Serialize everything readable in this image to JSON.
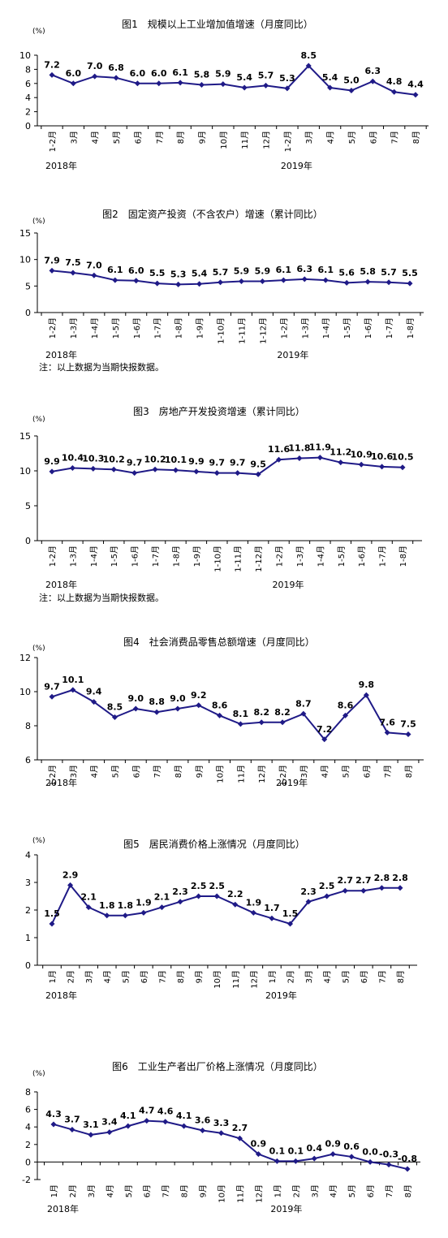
{
  "charts": [
    {
      "title": "图1　规模以上工业增加值增速（月度同比）",
      "unit": "(%)",
      "note": "",
      "year_labels": [
        {
          "label": "2018年",
          "index": 0
        },
        {
          "label": "2019年",
          "index": 11
        }
      ],
      "chart_data": {
        "type": "line",
        "categories": [
          "1-2月",
          "3月",
          "4月",
          "5月",
          "6月",
          "7月",
          "8月",
          "9月",
          "10月",
          "11月",
          "12月",
          "1-2月",
          "3月",
          "4月",
          "5月",
          "6月",
          "7月",
          "8月"
        ],
        "values": [
          7.2,
          6.0,
          7.0,
          6.8,
          6.0,
          6.0,
          6.1,
          5.8,
          5.9,
          5.4,
          5.7,
          5.3,
          8.5,
          5.4,
          5.0,
          6.3,
          4.8,
          4.4
        ],
        "labels": [
          "7.2",
          "6.0",
          "7.0",
          "6.8",
          "6.0",
          "6.0",
          "6.1",
          "5.8",
          "5.9",
          "5.4",
          "5.7",
          "5.3",
          "8.5",
          "5.4",
          "5.0",
          "6.3",
          "4.8",
          "4.4"
        ],
        "ylim": [
          0,
          10
        ],
        "yticks": [
          "0",
          "2",
          "4",
          "6",
          "8",
          "10"
        ]
      }
    },
    {
      "title": "图2　固定资产投资（不含农户）增速（累计同比）",
      "unit": "(%)",
      "note": "注：以上数据为当期快报数据。",
      "year_labels": [
        {
          "label": "2018年",
          "index": 0
        },
        {
          "label": "2019年",
          "index": 11
        }
      ],
      "chart_data": {
        "type": "line",
        "categories": [
          "1-2月",
          "1-3月",
          "1-4月",
          "1-5月",
          "1-6月",
          "1-7月",
          "1-8月",
          "1-9月",
          "1-10月",
          "1-11月",
          "1-12月",
          "1-2月",
          "1-3月",
          "1-4月",
          "1-5月",
          "1-6月",
          "1-7月",
          "1-8月"
        ],
        "values": [
          7.9,
          7.5,
          7.0,
          6.1,
          6.0,
          5.5,
          5.3,
          5.4,
          5.7,
          5.9,
          5.9,
          6.1,
          6.3,
          6.1,
          5.6,
          5.8,
          5.7,
          5.5
        ],
        "labels": [
          "7.9",
          "7.5",
          "7.0",
          "6.1",
          "6.0",
          "5.5",
          "5.3",
          "5.4",
          "5.7",
          "5.9",
          "5.9",
          "6.1",
          "6.3",
          "6.1",
          "5.6",
          "5.8",
          "5.7",
          "5.5"
        ],
        "ylim": [
          0,
          15
        ],
        "yticks": [
          "0",
          "5",
          "10",
          "15"
        ]
      }
    },
    {
      "title": "图3　房地产开发投资增速（累计同比）",
      "unit": "(%)",
      "note": "注：以上数据为当期快报数据。",
      "year_labels": [
        {
          "label": "2018年",
          "index": 0
        },
        {
          "label": "2019年",
          "index": 11
        }
      ],
      "chart_data": {
        "type": "line",
        "categories": [
          "1-2月",
          "1-3月",
          "1-4月",
          "1-5月",
          "1-6月",
          "1-7月",
          "1-8月",
          "1-9月",
          "1-10月",
          "1-11月",
          "1-12月",
          "1-2月",
          "1-3月",
          "1-4月",
          "1-5月",
          "1-6月",
          "1-7月",
          "1-8月"
        ],
        "values": [
          9.9,
          10.4,
          10.3,
          10.2,
          9.7,
          10.2,
          10.1,
          9.9,
          9.7,
          9.7,
          9.5,
          11.6,
          11.8,
          11.9,
          11.2,
          10.9,
          10.6,
          10.5
        ],
        "labels": [
          "9.9",
          "10.4",
          "10.3",
          "10.2",
          "9.7",
          "10.2",
          "10.1",
          "9.9",
          "9.7",
          "9.7",
          "9.5",
          "11.6",
          "11.8",
          "11.9",
          "11.2",
          "10.9",
          "10.6",
          "10.5"
        ],
        "ylim": [
          0,
          15
        ],
        "yticks": [
          "0",
          "5",
          "10",
          "15"
        ]
      }
    },
    {
      "title": "图4　社会消费品零售总额增速（月度同比）",
      "unit": "(%)",
      "note": "",
      "year_labels": [
        {
          "label": "2018年",
          "index": 0
        },
        {
          "label": "2019年",
          "index": 11
        }
      ],
      "chart_data": {
        "type": "line",
        "categories": [
          "1-2月",
          "3月",
          "4月",
          "5月",
          "6月",
          "7月",
          "8月",
          "9月",
          "10月",
          "11月",
          "12月",
          "1-2月",
          "3月",
          "4月",
          "5月",
          "6月",
          "7月",
          "8月"
        ],
        "values": [
          9.7,
          10.1,
          9.4,
          8.5,
          9.0,
          8.8,
          9.0,
          9.2,
          8.6,
          8.1,
          8.2,
          8.2,
          8.7,
          7.2,
          8.6,
          9.8,
          7.6,
          7.5
        ],
        "labels": [
          "9.7",
          "10.1",
          "9.4",
          "8.5",
          "9.0",
          "8.8",
          "9.0",
          "9.2",
          "8.6",
          "8.1",
          "8.2",
          "8.2",
          "8.7",
          "7.2",
          "8.6",
          "9.8",
          "7.6",
          "7.5"
        ],
        "ylim": [
          6,
          12
        ],
        "yticks": [
          "6",
          "8",
          "10",
          "12"
        ]
      }
    },
    {
      "title": "图5　居民消费价格上涨情况（月度同比）",
      "unit": "(%)",
      "note": "",
      "year_labels": [
        {
          "label": "2018年",
          "index": 0
        },
        {
          "label": "2019年",
          "index": 12
        }
      ],
      "chart_data": {
        "type": "line",
        "categories": [
          "1月",
          "2月",
          "3月",
          "4月",
          "5月",
          "6月",
          "7月",
          "8月",
          "9月",
          "10月",
          "11月",
          "12月",
          "1月",
          "2月",
          "3月",
          "4月",
          "5月",
          "6月",
          "7月",
          "8月"
        ],
        "values": [
          1.5,
          2.9,
          2.1,
          1.8,
          1.8,
          1.9,
          2.1,
          2.3,
          2.5,
          2.5,
          2.2,
          1.9,
          1.7,
          1.5,
          2.3,
          2.5,
          2.7,
          2.7,
          2.8,
          2.8
        ],
        "labels": [
          "1.5",
          "2.9",
          "2.1",
          "1.8",
          "1.8",
          "1.9",
          "2.1",
          "2.3",
          "2.5",
          "2.5",
          "2.2",
          "1.9",
          "1.7",
          "1.5",
          "2.3",
          "2.5",
          "2.7",
          "2.7",
          "2.8",
          "2.8"
        ],
        "ylim": [
          0,
          4
        ],
        "yticks": [
          "0",
          "1",
          "2",
          "3",
          "4"
        ]
      }
    },
    {
      "title": "图6　工业生产者出厂价格上涨情况（月度同比）",
      "unit": "(%)",
      "note": "",
      "year_labels": [
        {
          "label": "2018年",
          "index": 0
        },
        {
          "label": "2019年",
          "index": 12
        }
      ],
      "chart_data": {
        "type": "line",
        "categories": [
          "1月",
          "2月",
          "3月",
          "4月",
          "5月",
          "6月",
          "7月",
          "8月",
          "9月",
          "10月",
          "11月",
          "12月",
          "1月",
          "2月",
          "3月",
          "4月",
          "5月",
          "6月",
          "7月",
          "8月"
        ],
        "values": [
          4.3,
          3.7,
          3.1,
          3.4,
          4.1,
          4.7,
          4.6,
          4.1,
          3.6,
          3.3,
          2.7,
          0.9,
          0.1,
          0.1,
          0.4,
          0.9,
          0.6,
          0.0,
          -0.3,
          -0.8
        ],
        "labels": [
          "4.3",
          "3.7",
          "3.1",
          "3.4",
          "4.1",
          "4.7",
          "4.6",
          "4.1",
          "3.6",
          "3.3",
          "2.7",
          "0.9",
          "0.1",
          "0.1",
          "0.4",
          "0.9",
          "0.6",
          "0.0",
          "-0.3",
          "-0.8"
        ],
        "ylim": [
          -2,
          8
        ],
        "yticks": [
          "-2",
          "0",
          "2",
          "4",
          "6",
          "8"
        ]
      }
    }
  ]
}
